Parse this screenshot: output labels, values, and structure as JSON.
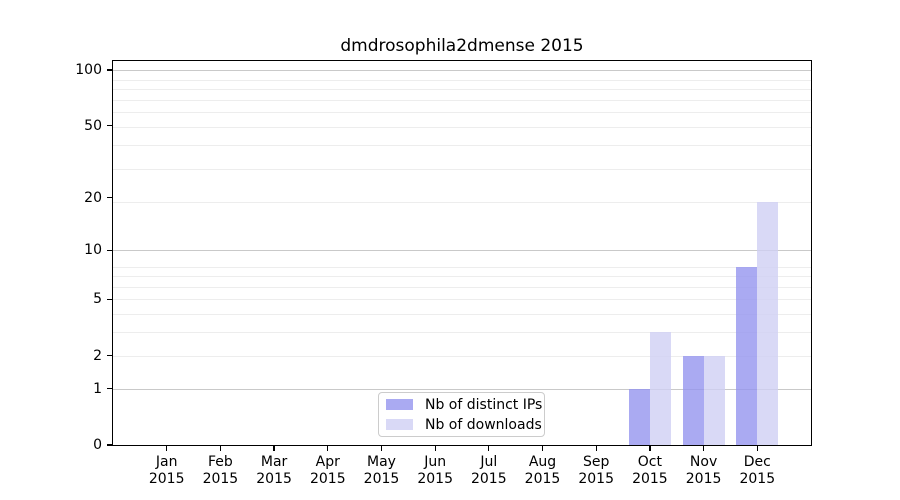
{
  "chart_data": {
    "type": "bar",
    "title": "dmdrosophila2dmense 2015",
    "categories": [
      "Jan",
      "Feb",
      "Mar",
      "Apr",
      "May",
      "Jun",
      "Jul",
      "Aug",
      "Sep",
      "Oct",
      "Nov",
      "Dec"
    ],
    "year": "2015",
    "series": [
      {
        "name": "Nb of distinct IPs",
        "color": "#9595ef",
        "opacity": 0.8,
        "values": [
          0,
          0,
          0,
          0,
          0,
          0,
          0,
          0,
          0,
          1,
          2,
          8
        ]
      },
      {
        "name": "Nb of downloads",
        "color": "#d0d0f4",
        "opacity": 0.8,
        "values": [
          0,
          0,
          0,
          0,
          0,
          0,
          0,
          0,
          0,
          3,
          2,
          19
        ]
      }
    ],
    "xlabel": "",
    "ylabel": "",
    "yscale": "log1p",
    "yticks": [
      0,
      1,
      2,
      5,
      10,
      20,
      50,
      100
    ],
    "ylim": [
      0,
      112
    ],
    "grid": "horizontal",
    "legend_position": "lower center"
  }
}
